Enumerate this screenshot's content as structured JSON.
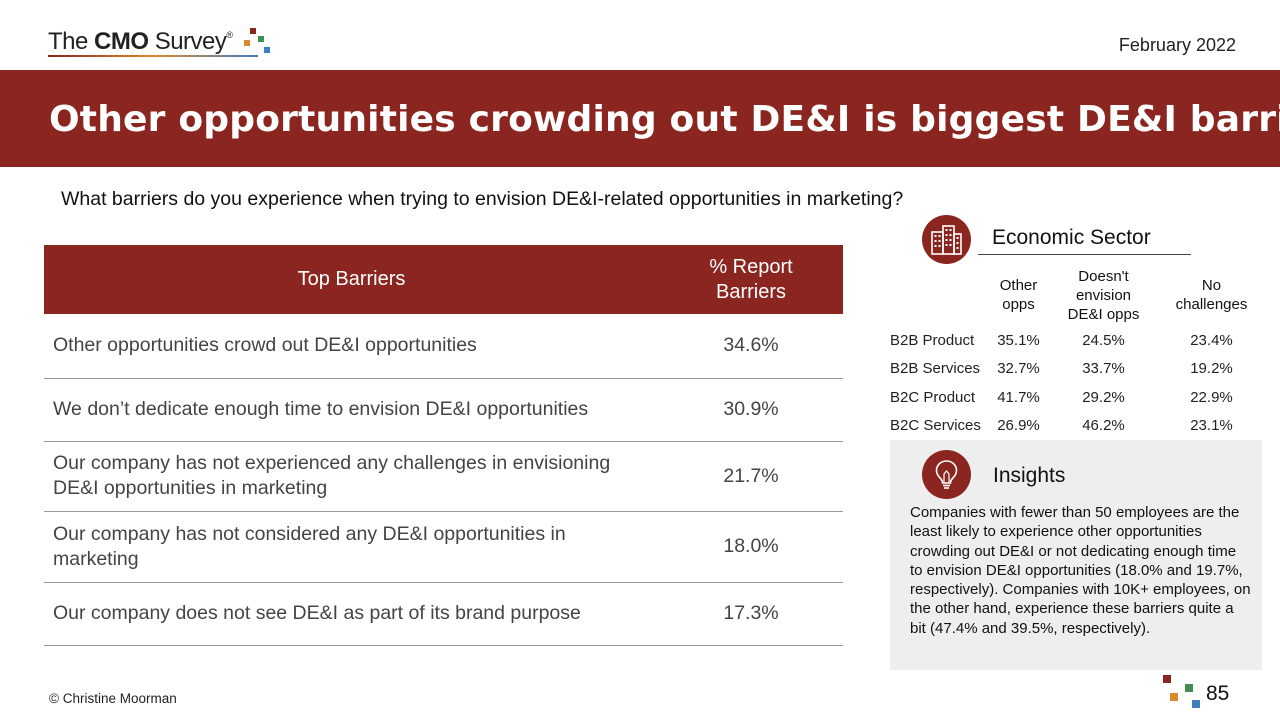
{
  "header": {
    "logo": {
      "prefix": "The",
      "brand": "CMO",
      "suffix": "Survey",
      "mark": "®",
      "squares": [
        "#8b2520",
        "#d98a2b",
        "#3f8f4f",
        "#3d7fc1"
      ]
    },
    "date": "February 2022"
  },
  "banner": {
    "title": "Other opportunities crowding out DE&I is biggest DE&I barrier",
    "color": "#8b2520"
  },
  "question": "What barriers do you experience when trying to envision DE&I-related opportunities in marketing?",
  "barriers_table": {
    "headers": [
      "Top Barriers",
      "% Report Barriers"
    ],
    "rows": [
      {
        "barrier": "Other opportunities crowd out DE&I opportunities",
        "pct": "34.6%"
      },
      {
        "barrier": "We don’t dedicate enough time to envision DE&I opportunities",
        "pct": "30.9%"
      },
      {
        "barrier": "Our company has not experienced any challenges in envisioning DE&I opportunities in marketing",
        "pct": "21.7%"
      },
      {
        "barrier": "Our company has not considered any DE&I opportunities in marketing",
        "pct": "18.0%"
      },
      {
        "barrier": "Our company does not see DE&I as part of its brand purpose",
        "pct": "17.3%"
      }
    ]
  },
  "economic_sector": {
    "icon": "buildings-icon",
    "title": "Economic Sector",
    "headers": [
      "",
      "Other opps",
      "Doesn't envision DE&I opps",
      "No challenges"
    ],
    "rows": [
      {
        "segment": "B2B Product",
        "values": [
          "35.1%",
          "24.5%",
          "23.4%"
        ]
      },
      {
        "segment": "B2B Services",
        "values": [
          "32.7%",
          "33.7%",
          "19.2%"
        ]
      },
      {
        "segment": "B2C Product",
        "values": [
          "41.7%",
          "29.2%",
          "22.9%"
        ]
      },
      {
        "segment": "B2C Services",
        "values": [
          "26.9%",
          "46.2%",
          "23.1%"
        ]
      }
    ]
  },
  "insights": {
    "icon": "lightbulb-icon",
    "title": "Insights",
    "text": "Companies with fewer than 50 employees are the least likely to experience other opportunities crowding out DE&I or not dedicating enough time to envision DE&I opportunities (18.0% and 19.7%, respectively). Companies with 10K+ employees, on the other hand, experience these barriers quite a bit (47.4% and 39.5%, respectively)."
  },
  "footer": {
    "copyright": "© Christine Moorman",
    "page_number": "85"
  }
}
